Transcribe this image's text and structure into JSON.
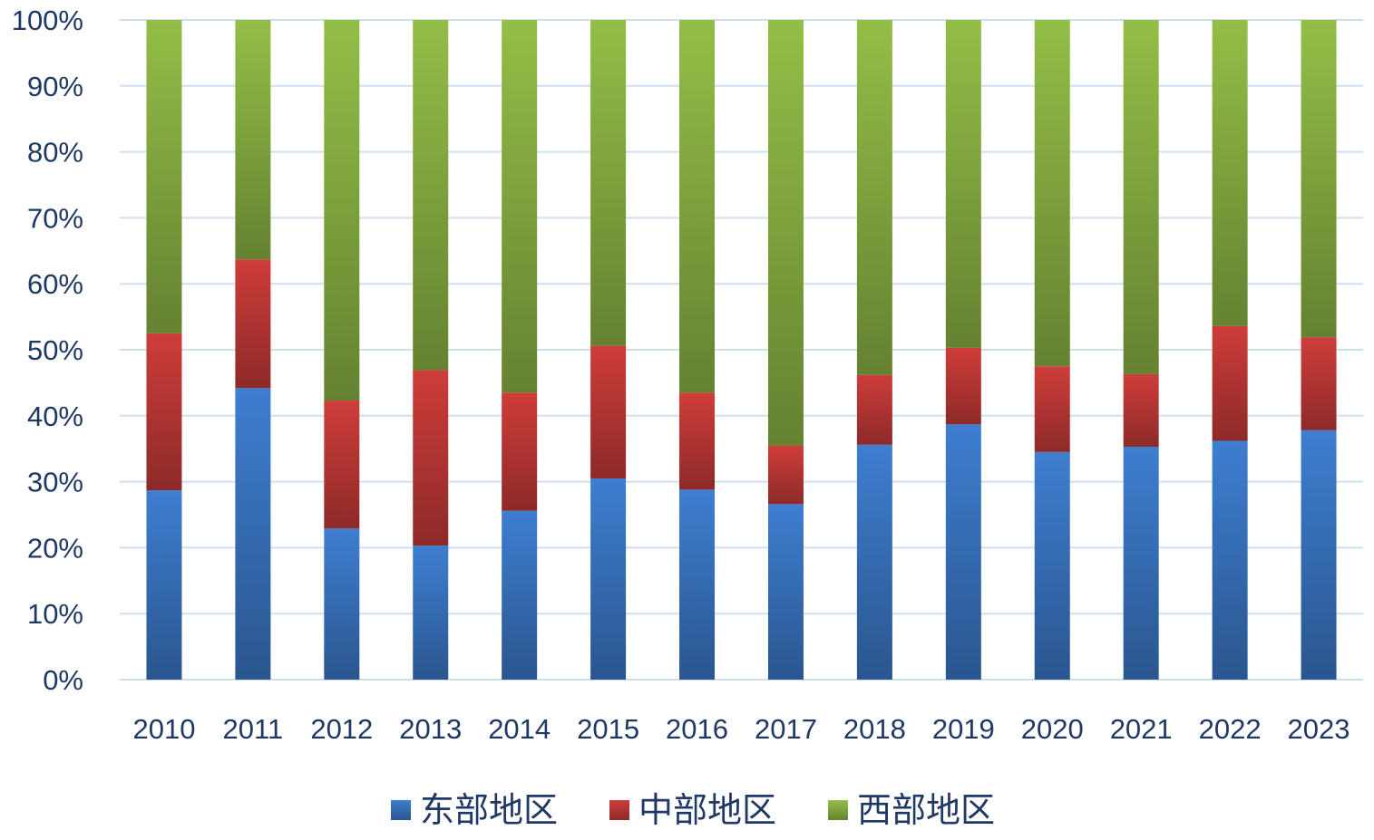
{
  "chart_data": {
    "type": "bar",
    "stacked": "percent",
    "categories": [
      "2010",
      "2011",
      "2012",
      "2013",
      "2014",
      "2015",
      "2016",
      "2017",
      "2018",
      "2019",
      "2020",
      "2021",
      "2022",
      "2023"
    ],
    "series": [
      {
        "name": "东部地区",
        "color": "#3b78c6",
        "values": [
          28.7,
          44.2,
          22.9,
          20.3,
          25.6,
          30.5,
          28.8,
          26.6,
          35.6,
          38.7,
          34.5,
          35.3,
          36.2,
          37.8
        ]
      },
      {
        "name": "中部地区",
        "color": "#c43a37",
        "values": [
          23.8,
          19.5,
          19.4,
          26.6,
          17.9,
          20.1,
          14.7,
          8.9,
          10.6,
          11.6,
          13.0,
          11.0,
          17.4,
          14.1
        ]
      },
      {
        "name": "西部地区",
        "color": "#8cb544",
        "values": [
          47.5,
          36.3,
          57.7,
          53.1,
          56.5,
          49.4,
          56.5,
          64.5,
          53.8,
          49.7,
          52.5,
          53.7,
          46.4,
          48.1
        ]
      }
    ],
    "yticks": [
      "0%",
      "10%",
      "20%",
      "30%",
      "40%",
      "50%",
      "60%",
      "70%",
      "80%",
      "90%",
      "100%"
    ],
    "ylim": [
      0,
      100
    ],
    "grid": true,
    "legend_position": "bottom"
  }
}
